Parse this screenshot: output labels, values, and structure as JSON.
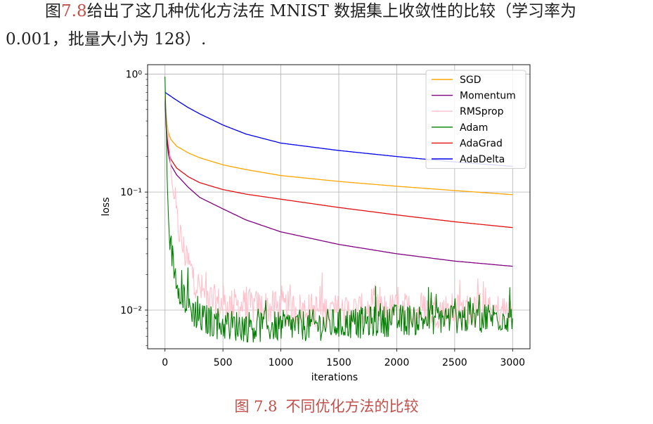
{
  "paragraph": {
    "line1_prefix": "图",
    "figure_ref": "7.8",
    "line1_rest": "给出了这几种优化方法在 MNIST 数据集上收敛性的比较（学习率为",
    "line2": "0.001，批量大小为 128）."
  },
  "caption": {
    "figure_number": "图 7.8",
    "text": "不同优化方法的比较"
  },
  "chart_data": {
    "type": "line",
    "title": "",
    "xlabel": "iterations",
    "ylabel": "loss",
    "xlim": [
      -150,
      3150
    ],
    "ylim": [
      0.0047,
      1.2
    ],
    "yscale": "log",
    "xticks": [
      0,
      500,
      1000,
      1500,
      2000,
      2500,
      3000
    ],
    "xtick_labels": [
      "0",
      "500",
      "1000",
      "1500",
      "2000",
      "2500",
      "3000"
    ],
    "yticks": [
      0.01,
      0.1,
      1
    ],
    "ytick_labels": [
      "10⁻²",
      "10⁻¹",
      "10⁰"
    ],
    "grid": true,
    "legend_position": "top-right",
    "series": [
      {
        "name": "SGD",
        "color": "#ffa500",
        "noise": 0,
        "points": [
          [
            0,
            0.65
          ],
          [
            10,
            0.45
          ],
          [
            25,
            0.33
          ],
          [
            50,
            0.28
          ],
          [
            100,
            0.245
          ],
          [
            200,
            0.215
          ],
          [
            300,
            0.195
          ],
          [
            500,
            0.17
          ],
          [
            700,
            0.155
          ],
          [
            1000,
            0.138
          ],
          [
            1500,
            0.123
          ],
          [
            2000,
            0.112
          ],
          [
            2500,
            0.103
          ],
          [
            3000,
            0.095
          ]
        ]
      },
      {
        "name": "Momentum",
        "color": "#800080",
        "noise": 0,
        "points": [
          [
            0,
            0.62
          ],
          [
            10,
            0.35
          ],
          [
            25,
            0.22
          ],
          [
            50,
            0.17
          ],
          [
            100,
            0.14
          ],
          [
            200,
            0.11
          ],
          [
            300,
            0.09
          ],
          [
            500,
            0.072
          ],
          [
            700,
            0.058
          ],
          [
            1000,
            0.046
          ],
          [
            1500,
            0.036
          ],
          [
            2000,
            0.03
          ],
          [
            2500,
            0.026
          ],
          [
            3000,
            0.0235
          ]
        ]
      },
      {
        "name": "RMSprop",
        "color": "#ffc0cb",
        "noise": 0.5,
        "noise_after": 80,
        "points": [
          [
            0,
            0.62
          ],
          [
            30,
            0.3
          ],
          [
            60,
            0.12
          ],
          [
            100,
            0.06
          ],
          [
            150,
            0.035
          ],
          [
            200,
            0.025
          ],
          [
            250,
            0.019
          ],
          [
            300,
            0.015
          ],
          [
            400,
            0.012
          ],
          [
            500,
            0.011
          ],
          [
            1000,
            0.0103
          ],
          [
            1500,
            0.0097
          ],
          [
            2000,
            0.01
          ],
          [
            3000,
            0.0098
          ]
        ]
      },
      {
        "name": "Adam",
        "color": "#008000",
        "noise": 0.45,
        "noise_after": 2,
        "points": [
          [
            0,
            0.95
          ],
          [
            5,
            0.6
          ],
          [
            15,
            0.2
          ],
          [
            30,
            0.06
          ],
          [
            50,
            0.035
          ],
          [
            80,
            0.022
          ],
          [
            120,
            0.016
          ],
          [
            200,
            0.011
          ],
          [
            300,
            0.0085
          ],
          [
            500,
            0.0075
          ],
          [
            800,
            0.0072
          ],
          [
            1200,
            0.0074
          ],
          [
            1500,
            0.0076
          ],
          [
            2000,
            0.0082
          ],
          [
            2500,
            0.0086
          ],
          [
            3000,
            0.0088
          ]
        ]
      },
      {
        "name": "AdaGrad",
        "color": "#e31010",
        "noise": 0,
        "points": [
          [
            0,
            0.62
          ],
          [
            10,
            0.38
          ],
          [
            25,
            0.24
          ],
          [
            50,
            0.19
          ],
          [
            100,
            0.16
          ],
          [
            200,
            0.135
          ],
          [
            300,
            0.12
          ],
          [
            500,
            0.105
          ],
          [
            700,
            0.096
          ],
          [
            1000,
            0.087
          ],
          [
            1500,
            0.074
          ],
          [
            2000,
            0.064
          ],
          [
            2500,
            0.056
          ],
          [
            3000,
            0.05
          ]
        ]
      },
      {
        "name": "AdaDelta",
        "color": "#0000ee",
        "noise": 0,
        "points": [
          [
            0,
            0.7
          ],
          [
            100,
            0.6
          ],
          [
            200,
            0.52
          ],
          [
            300,
            0.46
          ],
          [
            500,
            0.37
          ],
          [
            700,
            0.31
          ],
          [
            1000,
            0.26
          ],
          [
            1500,
            0.225
          ],
          [
            2000,
            0.2
          ],
          [
            2500,
            0.18
          ],
          [
            3000,
            0.165
          ]
        ]
      }
    ],
    "spikes": [
      {
        "series": "Adam",
        "x": 1820,
        "y": 0.016
      },
      {
        "series": "Adam",
        "x": 2710,
        "y": 0.0135
      },
      {
        "series": "RMSprop",
        "x": 1810,
        "y": 0.0165
      },
      {
        "series": "RMSprop",
        "x": 2720,
        "y": 0.014
      }
    ]
  }
}
